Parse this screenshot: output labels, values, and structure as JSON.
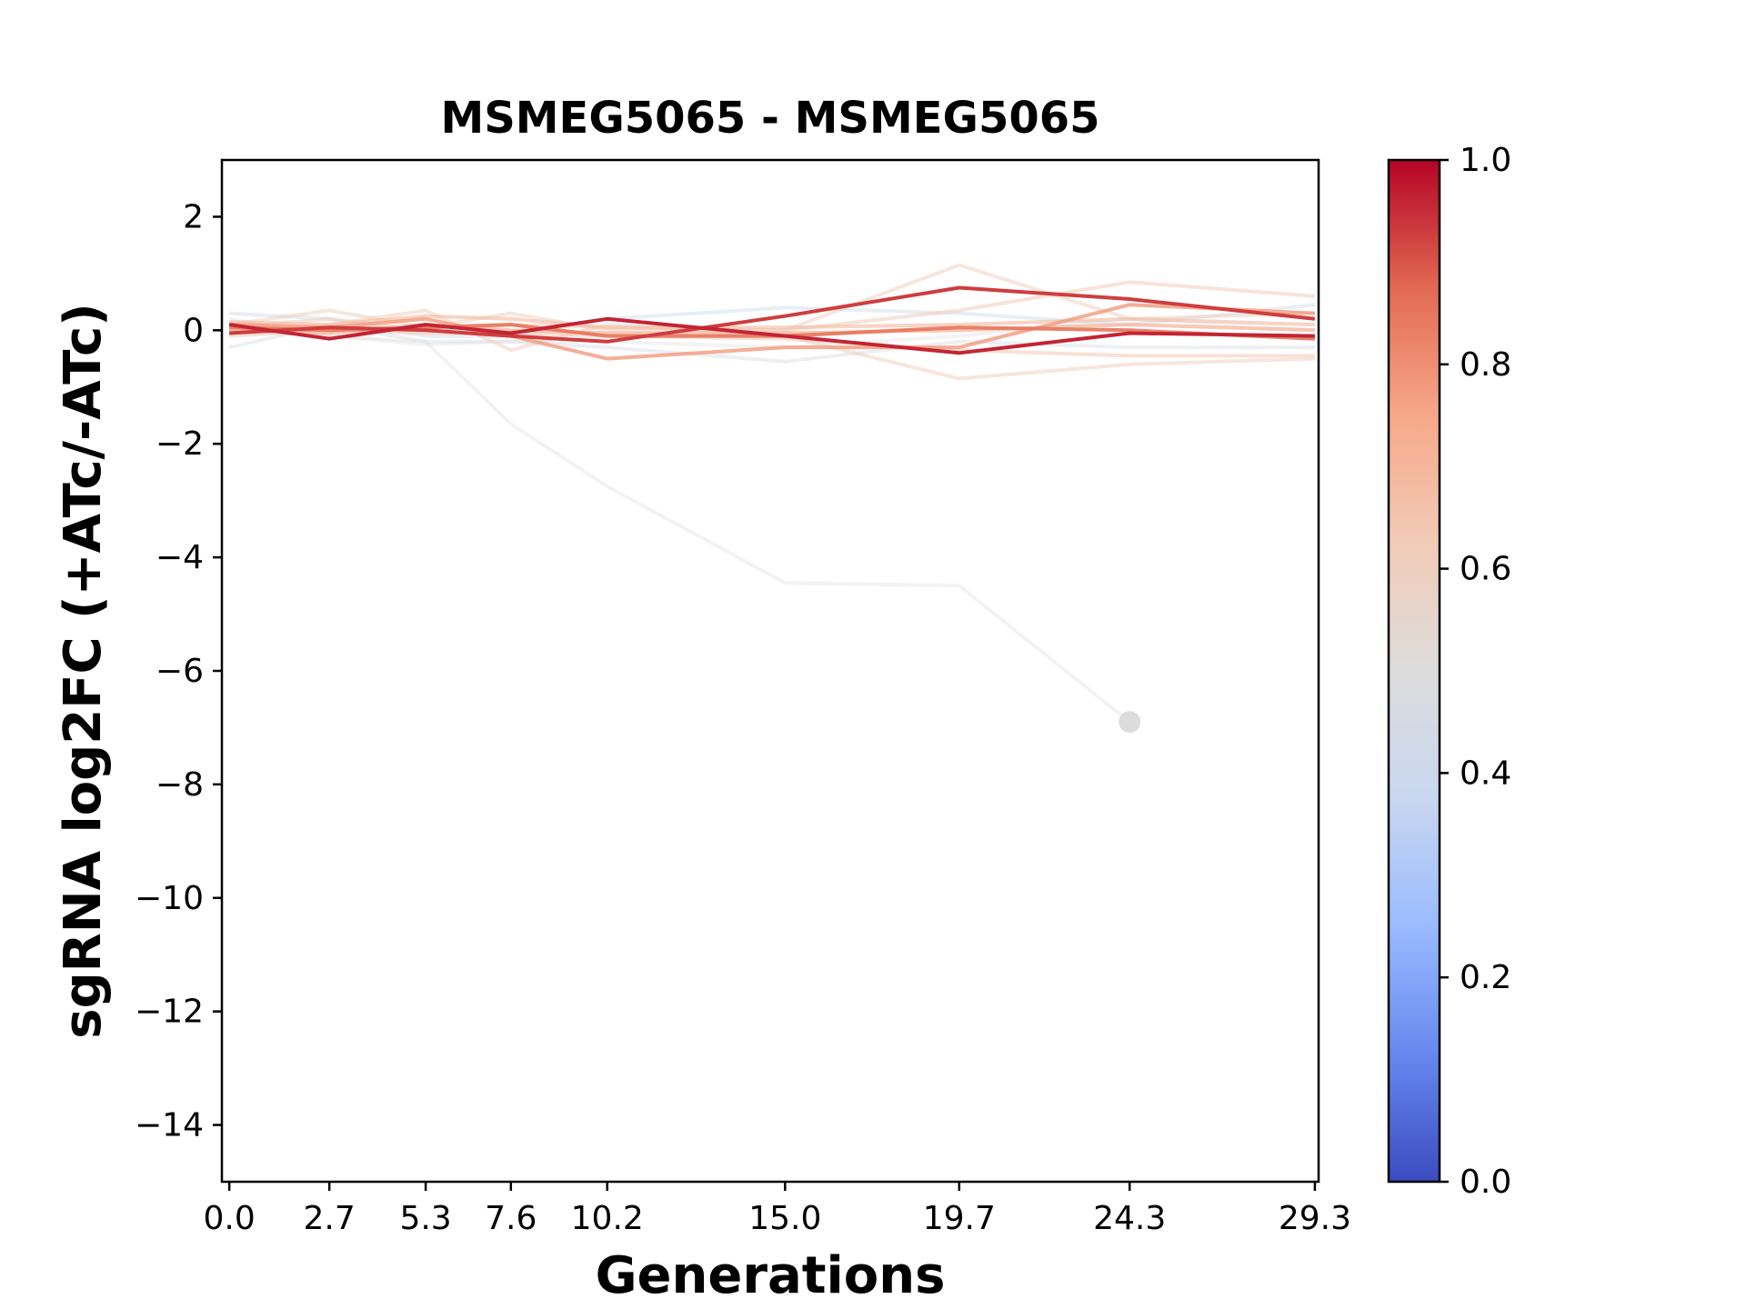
{
  "chart_data": {
    "type": "line",
    "title": "MSMEG5065 - MSMEG5065",
    "xlabel": "Generations",
    "ylabel": "sgRNA log2FC (+ATc/-ATc)",
    "x": [
      0.0,
      2.7,
      5.3,
      7.6,
      10.2,
      15.0,
      19.7,
      24.3,
      29.3
    ],
    "x_tick_labels": [
      "0.0",
      "2.7",
      "5.3",
      "7.6",
      "10.2",
      "15.0",
      "19.7",
      "24.3",
      "29.3"
    ],
    "xlim": [
      -0.2,
      29.4
    ],
    "ylim": [
      -15,
      3
    ],
    "y_ticks": [
      2,
      0,
      -2,
      -4,
      -6,
      -8,
      -10,
      -12,
      -14
    ],
    "y_tick_labels": [
      "2",
      "0",
      "−2",
      "−4",
      "−6",
      "−8",
      "−10",
      "−12",
      "−14"
    ],
    "colorbar": {
      "range": [
        0.0,
        1.0
      ],
      "ticks": [
        0.0,
        0.2,
        0.4,
        0.6,
        0.8,
        1.0
      ],
      "tick_labels": [
        "0.0",
        "0.2",
        "0.4",
        "0.6",
        "0.8",
        "1.0"
      ],
      "stops": [
        "#3b4cc0",
        "#6788ee",
        "#9abbff",
        "#c9d7f0",
        "#dddcdc",
        "#f2cbb7",
        "#f7a889",
        "#e26952",
        "#b40426"
      ]
    },
    "series": [
      {
        "score": 0.42,
        "values": [
          0.3,
          0.2,
          -0.1,
          -0.1,
          0.2,
          0.4,
          0.3,
          0.1,
          0.45
        ]
      },
      {
        "score": 0.45,
        "values": [
          -0.3,
          0.1,
          -0.2,
          -0.2,
          -0.3,
          -0.55,
          -0.2,
          -0.3,
          -0.3
        ]
      },
      {
        "score": 0.5,
        "values": [
          0.2,
          -0.1,
          -0.25,
          -0.2,
          -0.2,
          -0.3,
          -0.1,
          0.2,
          0.0
        ]
      },
      {
        "score": 0.6,
        "values": [
          0.1,
          0.35,
          0.05,
          0.3,
          0.0,
          0.0,
          1.15,
          0.2,
          0.3
        ]
      },
      {
        "score": 0.6,
        "values": [
          0.0,
          0.1,
          0.35,
          -0.35,
          0.1,
          -0.1,
          -0.85,
          -0.6,
          -0.5
        ]
      },
      {
        "score": 0.62,
        "values": [
          0.05,
          0.2,
          0.0,
          0.1,
          0.05,
          0.0,
          0.35,
          0.85,
          0.6
        ]
      },
      {
        "score": 0.63,
        "values": [
          -0.1,
          0.0,
          -0.05,
          -0.05,
          -0.1,
          -0.15,
          -0.35,
          -0.45,
          -0.45
        ]
      },
      {
        "score": 0.68,
        "values": [
          0.15,
          0.1,
          0.25,
          0.2,
          0.05,
          0.05,
          0.1,
          0.2,
          0.1
        ]
      },
      {
        "score": 0.72,
        "values": [
          0.0,
          -0.05,
          0.1,
          0.0,
          -0.05,
          -0.05,
          0.0,
          0.1,
          0.0
        ]
      },
      {
        "score": 0.78,
        "values": [
          0.1,
          0.05,
          0.2,
          -0.1,
          -0.5,
          -0.3,
          -0.3,
          0.45,
          0.3
        ]
      },
      {
        "score": 0.85,
        "values": [
          0.05,
          0.0,
          0.05,
          0.1,
          -0.1,
          -0.1,
          0.05,
          0.0,
          -0.15
        ]
      },
      {
        "score": 0.93,
        "values": [
          -0.05,
          0.05,
          0.0,
          -0.1,
          -0.2,
          0.25,
          0.75,
          0.55,
          0.2
        ]
      },
      {
        "score": 0.96,
        "values": [
          0.1,
          -0.15,
          0.1,
          -0.05,
          0.2,
          -0.1,
          -0.4,
          -0.05,
          -0.1
        ]
      },
      {
        "score": 0.5,
        "values": [
          0.0,
          -0.1,
          -0.2,
          -1.65,
          -2.75,
          -4.45,
          -4.5,
          -6.9,
          null
        ],
        "end_marker": true
      }
    ]
  }
}
